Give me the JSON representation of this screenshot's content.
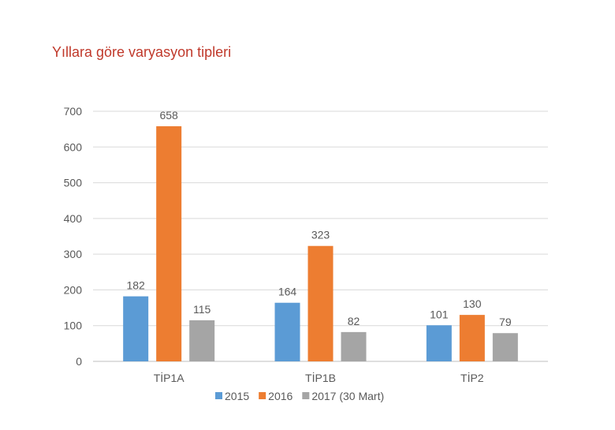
{
  "chart_data": {
    "type": "bar",
    "title": "Yıllara göre varyasyon tipleri",
    "categories": [
      "TİP1A",
      "TİP1B",
      "TİP2"
    ],
    "series": [
      {
        "name": "2015",
        "values": [
          182,
          164,
          101
        ],
        "color": "#5b9bd5"
      },
      {
        "name": "2016",
        "values": [
          658,
          323,
          130
        ],
        "color": "#ed7d31"
      },
      {
        "name": "2017 (30 Mart)",
        "values": [
          115,
          82,
          79
        ],
        "color": "#a5a5a5"
      }
    ],
    "ylim": [
      0,
      700
    ],
    "yticks": [
      0,
      100,
      200,
      300,
      400,
      500,
      600,
      700
    ],
    "grid": true,
    "legend": "bottom",
    "title_color": "#c0392b"
  }
}
